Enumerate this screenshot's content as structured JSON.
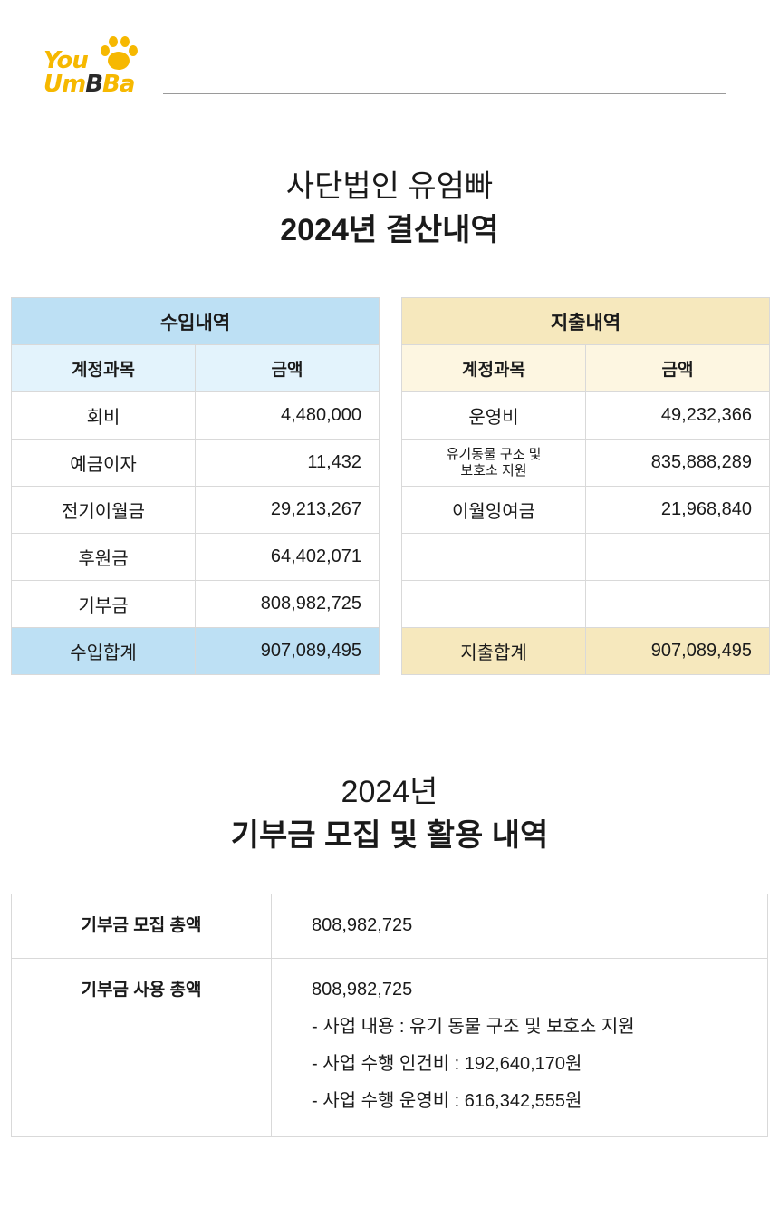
{
  "logo": {
    "line1": "You",
    "line2a": "Um",
    "line2b": "B",
    "line2c": "Ba"
  },
  "heading1": {
    "line1": "사단법인 유엄빠",
    "line2": "2024년 결산내역"
  },
  "income": {
    "title": "수입내역",
    "col_account": "계정과목",
    "col_amount": "금액",
    "rows": [
      {
        "account": "회비",
        "amount": "4,480,000"
      },
      {
        "account": "예금이자",
        "amount": "11,432"
      },
      {
        "account": "전기이월금",
        "amount": "29,213,267"
      },
      {
        "account": "후원금",
        "amount": "64,402,071"
      },
      {
        "account": "기부금",
        "amount": "808,982,725"
      }
    ],
    "total_label": "수입합계",
    "total_amount": "907,089,495"
  },
  "expense": {
    "title": "지출내역",
    "col_account": "계정과목",
    "col_amount": "금액",
    "rows": [
      {
        "account": "운영비",
        "amount": "49,232,366"
      },
      {
        "account": "유기동물 구조 및",
        "account2": "보호소 지원",
        "amount": "835,888,289"
      },
      {
        "account": "이월잉여금",
        "amount": "21,968,840"
      },
      {
        "account": "",
        "amount": ""
      },
      {
        "account": "",
        "amount": ""
      }
    ],
    "total_label": "지출합계",
    "total_amount": "907,089,495"
  },
  "heading2": {
    "line1": "2024년",
    "line2": "기부금 모집 및 활용 내역"
  },
  "donation": {
    "raised_label": "기부금 모집 총액",
    "raised_amount": "808,982,725",
    "used_label": "기부금 사용 총액",
    "used_amount": "808,982,725",
    "details": [
      "- 사업 내용 : 유기 동물 구조 및 보호소 지원",
      "- 사업 수행 인건비 : 192,640,170원",
      "- 사업 수행 운영비 : 616,342,555원"
    ]
  },
  "colors": {
    "logo_yellow": "#f6b800",
    "income_header": "#bde0f4",
    "income_subheader": "#e3f3fc",
    "expense_header": "#f6e8bd",
    "expense_subheader": "#fdf6e1"
  }
}
